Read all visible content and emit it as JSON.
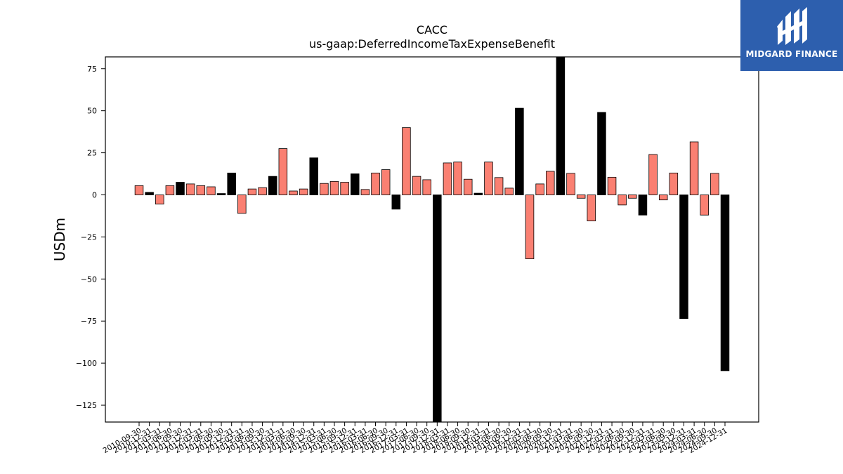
{
  "chart_data": {
    "type": "bar",
    "title": "CACC",
    "subtitle": "us-gaap:DeferredIncomeTaxExpenseBenefit",
    "xlabel": "",
    "ylabel": "USDm",
    "ylim": [
      -135,
      82
    ],
    "yticks": [
      75,
      50,
      25,
      0,
      -25,
      -50,
      -75,
      -100,
      -125
    ],
    "grid": false,
    "colors": {
      "quarterly": "#fa8072",
      "annual": "#000000",
      "edge": "#000000"
    },
    "categories": [
      "2010-09-30",
      "2010-12-31",
      "2011-03-31",
      "2011-06-30",
      "2011-09-30",
      "2011-12-31",
      "2012-03-31",
      "2012-06-30",
      "2012-09-30",
      "2012-12-31",
      "2013-03-31",
      "2013-06-30",
      "2013-09-30",
      "2013-12-31",
      "2014-03-31",
      "2014-06-30",
      "2014-09-30",
      "2014-12-31",
      "2015-03-31",
      "2015-06-30",
      "2015-09-30",
      "2015-12-31",
      "2016-03-31",
      "2016-06-30",
      "2016-09-30",
      "2016-12-31",
      "2017-03-31",
      "2017-06-30",
      "2017-09-30",
      "2017-12-31",
      "2018-03-31",
      "2018-06-30",
      "2018-09-30",
      "2018-12-31",
      "2019-03-31",
      "2019-06-30",
      "2019-09-30",
      "2019-12-31",
      "2020-03-31",
      "2020-06-30",
      "2020-09-30",
      "2020-12-31",
      "2021-03-31",
      "2021-06-30",
      "2021-09-30",
      "2021-12-31",
      "2022-03-31",
      "2022-06-30",
      "2022-09-30",
      "2022-12-31",
      "2023-03-31",
      "2023-06-30",
      "2023-09-30",
      "2023-12-31",
      "2024-03-31",
      "2024-06-30",
      "2024-09-30",
      "2024-12-31"
    ],
    "values": [
      5.5,
      1.5,
      -5.5,
      5.5,
      7.5,
      6.5,
      5.5,
      4.8,
      0.8,
      13.0,
      -11.0,
      3.5,
      4.3,
      11.0,
      27.5,
      2.3,
      3.5,
      22.0,
      6.8,
      8.0,
      7.5,
      12.5,
      3.2,
      13.0,
      15.0,
      -8.5,
      40.0,
      11.0,
      9.0,
      -135.0,
      19.0,
      19.5,
      9.3,
      1.0,
      19.5,
      10.3,
      4.0,
      51.5,
      -38.0,
      6.5,
      14.0,
      82.0,
      12.8,
      -2.0,
      -15.5,
      49.0,
      10.5,
      -6.0,
      -2.0,
      -12.0,
      24.0,
      -3.0,
      13.0,
      -73.5,
      31.5,
      -12.0,
      12.8,
      -104.5
    ],
    "annual": [
      false,
      true,
      false,
      false,
      true,
      false,
      false,
      false,
      true,
      true,
      false,
      false,
      false,
      true,
      false,
      false,
      false,
      true,
      false,
      false,
      false,
      true,
      false,
      false,
      false,
      true,
      false,
      false,
      false,
      true,
      false,
      false,
      false,
      true,
      false,
      false,
      false,
      true,
      false,
      false,
      false,
      true,
      false,
      false,
      false,
      true,
      false,
      false,
      false,
      true,
      false,
      false,
      false,
      true,
      false,
      false,
      false,
      true
    ]
  },
  "logo": {
    "text": "MIDGARD FINANCE"
  }
}
